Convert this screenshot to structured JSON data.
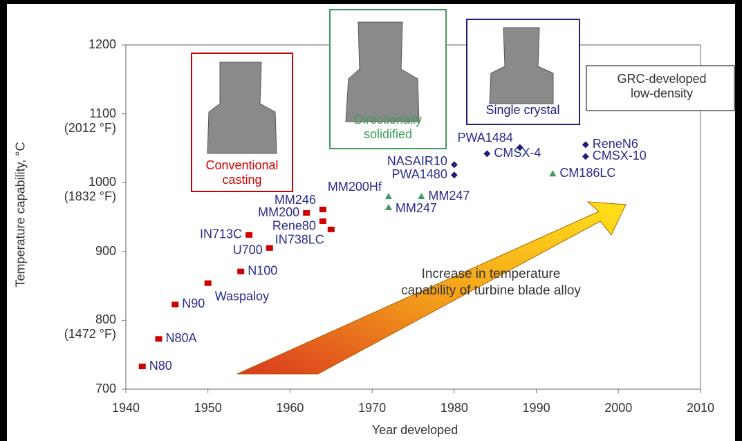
{
  "chart_data": {
    "type": "scatter",
    "xlabel": "Year developed",
    "ylabel": "Temperature capability, °C",
    "xlim": [
      1940,
      2010
    ],
    "xticks": [
      1940,
      1950,
      1960,
      1970,
      1980,
      1990,
      2000,
      2010
    ],
    "ylim": [
      700,
      1200
    ],
    "yticks": [
      700,
      {
        "value": 800,
        "label": "800\n(1472 °F)"
      },
      900,
      {
        "value": 1000,
        "label": "1000\n(1832 °F)"
      },
      {
        "value": 1100,
        "label": "1100\n(2012 °F)"
      },
      1200
    ],
    "grid": false,
    "series": [
      {
        "name": "Conventional casting",
        "color": "#cc0000",
        "marker": "square",
        "labels": [
          "N80",
          "N80A",
          "N90",
          "Waspaloy",
          "N100",
          "U700",
          "IN713C",
          "MM200",
          "MM246",
          "Rene80",
          "IN738LC"
        ],
        "x": [
          1942,
          1944,
          1946,
          1950,
          1954,
          1957.5,
          1955,
          1962,
          1964,
          1964,
          1965
        ],
        "values": [
          733,
          773,
          823,
          854,
          871,
          905,
          924,
          956,
          961,
          944,
          932
        ]
      },
      {
        "name": "Directionally solidified",
        "color": "#3f9a5c",
        "marker": "triangle",
        "labels": [
          "MM200Hf",
          "MM247",
          "MM247",
          "CM186LC"
        ],
        "x": [
          1972,
          1972,
          1976,
          1992
        ],
        "values": [
          980,
          964,
          980,
          1013
        ]
      },
      {
        "name": "Single crystal",
        "color": "#1f1f7a",
        "marker": "diamond",
        "labels": [
          "NASAIR10",
          "PWA1480",
          "CMSX-4",
          "PWA1484",
          "ReneN6",
          "CMSX-10"
        ],
        "x": [
          1980,
          1980,
          1984,
          1988,
          1996,
          1996
        ],
        "values": [
          1026,
          1011,
          1042,
          1051,
          1055,
          1038
        ]
      }
    ],
    "annotations": [
      "GRC-developed\nlow-density",
      "Increase in temperature\ncapability of turbine blade alloy"
    ]
  }
}
